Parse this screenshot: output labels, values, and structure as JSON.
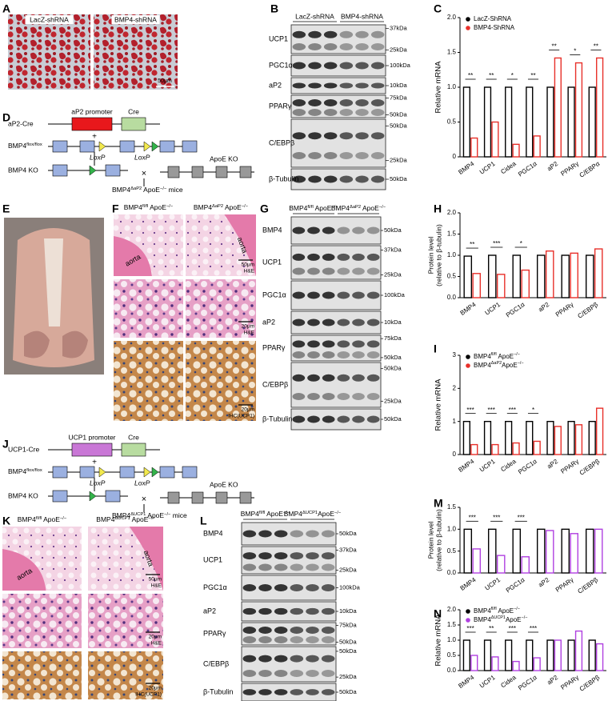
{
  "panel_labels": [
    "A",
    "B",
    "C",
    "D",
    "E",
    "F",
    "G",
    "H",
    "I",
    "J",
    "K",
    "L",
    "M",
    "N"
  ],
  "panel_a": {
    "headers": [
      "LacZ-shRNA",
      "BMP4-shRNA"
    ],
    "scale": "50μm"
  },
  "panel_b": {
    "headers": [
      "LacZ-shRNA",
      "BMP4-shRNA"
    ],
    "rows": [
      {
        "protein": "UCP1",
        "markers": [
          "37kDa",
          "25kDa"
        ]
      },
      {
        "protein": "PGC1α",
        "markers": [
          "100kDa"
        ]
      },
      {
        "protein": "aP2",
        "markers": [
          "10kDa"
        ]
      },
      {
        "protein": "PPARγ",
        "markers": [
          "75kDa",
          "50kDa"
        ]
      },
      {
        "protein": "C/EBPβ",
        "markers": [
          "50kDa",
          "25kDa"
        ]
      },
      {
        "protein": "β-Tubulin",
        "markers": [
          "50kDa"
        ]
      }
    ]
  },
  "panel_d": {
    "cre_line": "aP2-Cre",
    "promoter": "aP2 promoter",
    "cre": "Cre",
    "plus": "+",
    "flox": [
      "BMP4",
      "flox/flox"
    ],
    "loxp": [
      "LoxP",
      "LoxP"
    ],
    "ko": "BMP4 KO",
    "apoe": "ApoE KO",
    "cross": "×",
    "mice": [
      "BMP4",
      "ΔaP2",
      " ApoE",
      "−/−",
      " mice"
    ]
  },
  "panel_f": {
    "headers": [
      [
        "BMP4",
        "fl/fl",
        " ApoE",
        "−/−"
      ],
      [
        "BMP4",
        "ΔaP2",
        " ApoE",
        "−/−"
      ]
    ],
    "rows": [
      {
        "aorta": [
          "aorta",
          "aorta"
        ],
        "scale": [
          "50μm",
          "H&E"
        ]
      },
      {
        "scale": [
          "20μm",
          "H&E"
        ]
      },
      {
        "scale": [
          "20μm",
          "IHC(UCP1)"
        ]
      }
    ]
  },
  "panel_g": {
    "headers": [
      [
        "BMP4",
        "fl/fl",
        " ApoE",
        "−/−"
      ],
      [
        "BMP4",
        "ΔaP2",
        " ApoE",
        "−/−"
      ]
    ],
    "rows": [
      {
        "protein": "BMP4",
        "markers": [
          "50kDa"
        ]
      },
      {
        "protein": "UCP1",
        "markers": [
          "37kDa",
          "25kDa"
        ]
      },
      {
        "protein": "PGC1α",
        "markers": [
          "100kDa"
        ]
      },
      {
        "protein": "aP2",
        "markers": [
          "10kDa"
        ]
      },
      {
        "protein": "PPARγ",
        "markers": [
          "75kDa",
          "50kDa"
        ]
      },
      {
        "protein": "C/EBPβ",
        "markers": [
          "50kDa",
          "25kDa"
        ]
      },
      {
        "protein": "β-Tubulin",
        "markers": [
          "50kDa"
        ]
      }
    ]
  },
  "panel_j": {
    "cre_line": "UCP1-Cre",
    "promoter": "UCP1 promoter",
    "cre": "Cre",
    "plus": "+",
    "flox": [
      "BMP4",
      "flox/flox"
    ],
    "loxp": [
      "LoxP",
      "LoxP"
    ],
    "ko": "BMP4 KO",
    "apoe": "ApoE KO",
    "cross": "×",
    "mice": [
      "BMP4",
      "ΔUCP1",
      " ApoE",
      "−/−",
      " mice"
    ]
  },
  "panel_k": {
    "headers": [
      [
        "BMP4",
        "fl/fl",
        " ApoE",
        "−/−"
      ],
      [
        "BMP4",
        "ΔUCP1",
        " ApoE",
        "−/−"
      ]
    ],
    "rows": [
      {
        "aorta": [
          "aorta",
          "aorta"
        ],
        "scale": [
          "50μm",
          "H&E"
        ]
      },
      {
        "scale": [
          "20μm",
          "H&E"
        ]
      },
      {
        "scale": [
          "20μm",
          "IHC(UCP1)"
        ]
      }
    ]
  },
  "panel_l": {
    "headers": [
      [
        "BMP4",
        "fl/fl",
        " ApoE",
        "−/−"
      ],
      [
        "BMP4",
        "ΔUCP1",
        "ApoE",
        "−/−"
      ]
    ],
    "rows": [
      {
        "protein": "BMP4",
        "markers": [
          "50kDa"
        ]
      },
      {
        "protein": "UCP1",
        "markers": [
          "37kDa",
          "25kDa"
        ]
      },
      {
        "protein": "PGC1α",
        "markers": [
          "100kDa"
        ]
      },
      {
        "protein": "aP2",
        "markers": [
          "10kDa"
        ]
      },
      {
        "protein": "PPARγ",
        "markers": [
          "75kDa",
          "50kDa"
        ]
      },
      {
        "protein": "C/EBPβ",
        "markers": [
          "50kDa",
          "25kDa"
        ]
      },
      {
        "protein": "β-Tubulin",
        "markers": [
          "50kDa"
        ]
      }
    ]
  },
  "chart_data": [
    {
      "type": "bar",
      "y_label": "Relative mRNA",
      "categories": [
        "BMP4",
        "UCP1",
        "Cidea",
        "PGC1α",
        "aP2",
        "PPARγ",
        "C/EBPα"
      ],
      "series": [
        {
          "name": "LacZ-ShRNA",
          "color": "#000000",
          "values": [
            1,
            1,
            1,
            1,
            1,
            1,
            1
          ]
        },
        {
          "name": "BMP4-ShRNA",
          "color": "#e8302a",
          "values": [
            0.27,
            0.5,
            0.18,
            0.3,
            1.42,
            1.35,
            1.42
          ]
        }
      ],
      "significance": [
        "**",
        "**",
        "*",
        "**",
        "**",
        "*",
        "**"
      ],
      "ylim": [
        0,
        2
      ],
      "yticks": [
        0,
        0.5,
        {
          "value": 1,
          "label": "1.0"
        },
        1.5,
        {
          "value": 2,
          "label": "2.0"
        }
      ],
      "legend": "upper left"
    },
    {
      "type": "bar",
      "y_label_lines": [
        "Protein level",
        "(relative to β-tubulin)"
      ],
      "categories": [
        "BMP4",
        "UCP1",
        "PGC1α",
        "aP2",
        "PPARγ",
        "C/EBPβ"
      ],
      "series": [
        {
          "color": "#000000",
          "values": [
            0.98,
            1,
            1,
            1,
            1,
            1
          ]
        },
        {
          "color": "#e8302a",
          "values": [
            0.57,
            0.55,
            0.65,
            1.1,
            1.05,
            1.15
          ]
        }
      ],
      "significance": [
        "**",
        "***",
        "*",
        null,
        null,
        null
      ],
      "ylim": [
        0,
        2
      ],
      "yticks": [
        {
          "value": 0,
          "label": "0.0"
        },
        0.5,
        {
          "value": 1,
          "label": "1.0"
        },
        1.5,
        {
          "value": 2,
          "label": "2.0"
        }
      ]
    },
    {
      "type": "bar",
      "y_label": "Relative mRNA",
      "categories": [
        "BMP4",
        "UCP1",
        "Cidea",
        "PGC1α",
        "aP2",
        "PPARγ",
        "C/EBPβ"
      ],
      "series": [
        {
          "name": [
            "BMP4",
            "fl/fl",
            " ApoE",
            "−/−"
          ],
          "color": "#000000",
          "values": [
            1,
            1,
            1,
            1,
            1,
            1,
            1
          ]
        },
        {
          "name": [
            "BMP4",
            "ΔaP2",
            "ApoE",
            "−/−"
          ],
          "color": "#e8302a",
          "values": [
            0.3,
            0.3,
            0.35,
            0.4,
            0.85,
            0.9,
            1.4
          ]
        }
      ],
      "significance": [
        "***",
        "***",
        "***",
        "*",
        null,
        null,
        null
      ],
      "ylim": [
        0,
        3
      ],
      "yticks": [
        0,
        1,
        2,
        3
      ],
      "legend": "upper left"
    },
    {
      "type": "bar",
      "y_label_lines": [
        "Protein level",
        "(relative to β-tubulin)"
      ],
      "categories": [
        "BMP4",
        "UCP1",
        "PGC1α",
        "aP2",
        "PPARγ",
        "C/EBPβ"
      ],
      "series": [
        {
          "color": "#000000",
          "values": [
            1,
            1,
            1,
            1,
            1,
            1
          ]
        },
        {
          "color": "#b040e0",
          "values": [
            0.55,
            0.4,
            0.37,
            0.97,
            0.9,
            1
          ]
        }
      ],
      "significance": [
        "***",
        "***",
        "***",
        null,
        null,
        null
      ],
      "ylim": [
        0,
        1.5
      ],
      "yticks": [
        {
          "value": 0,
          "label": "0.0"
        },
        0.5,
        {
          "value": 1,
          "label": "1.0"
        },
        1.5
      ]
    },
    {
      "type": "bar",
      "y_label": "Relative mRNA",
      "categories": [
        "BMP4",
        "UCP1",
        "Cidea",
        "PGC1α",
        "aP2",
        "PPARγ",
        "C/EBPβ"
      ],
      "series": [
        {
          "name": [
            "BMP4",
            "fl/fl",
            " ApoE",
            "−/−"
          ],
          "color": "#000000",
          "values": [
            1,
            1,
            1,
            1,
            1,
            1,
            1
          ]
        },
        {
          "name": [
            "BMP4",
            "ΔUCP1",
            "ApoE",
            "−/−"
          ],
          "color": "#b040e0",
          "values": [
            0.5,
            0.45,
            0.3,
            0.42,
            1,
            1.3,
            0.88
          ]
        }
      ],
      "significance": [
        "***",
        "**",
        "***",
        "***",
        null,
        null,
        null
      ],
      "ylim": [
        0,
        2
      ],
      "yticks": [
        {
          "value": 0,
          "label": "0.0"
        },
        0.5,
        {
          "value": 1,
          "label": "1.0"
        },
        1.5,
        {
          "value": 2,
          "label": "2.0"
        }
      ],
      "legend": "upper left"
    }
  ]
}
